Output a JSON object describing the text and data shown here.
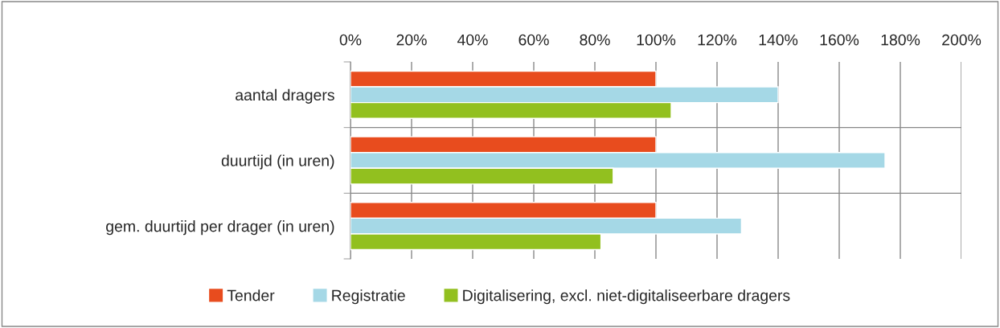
{
  "chart_data": {
    "type": "bar",
    "orientation": "horizontal",
    "categories": [
      "aantal dragers",
      "duurtijd (in uren)",
      "gem. duurtijd per drager (in uren)"
    ],
    "series": [
      {
        "name": "Tender",
        "color": "#e84c1e",
        "values": [
          100,
          100,
          100
        ]
      },
      {
        "name": "Registratie",
        "color": "#a5d8e6",
        "values": [
          140,
          175,
          128
        ]
      },
      {
        "name": "Digitalisering, excl. niet-digitaliseerbare dragers",
        "color": "#92c01f",
        "values": [
          105,
          86,
          82
        ]
      }
    ],
    "xlim": [
      0,
      200
    ],
    "xticks": [
      {
        "value": 0,
        "label": "0%"
      },
      {
        "value": 20,
        "label": "20%"
      },
      {
        "value": 40,
        "label": "40%"
      },
      {
        "value": 60,
        "label": "60%"
      },
      {
        "value": 80,
        "label": "80%"
      },
      {
        "value": 100,
        "label": "100%"
      },
      {
        "value": 120,
        "label": "120%"
      },
      {
        "value": 140,
        "label": "140%"
      },
      {
        "value": 160,
        "label": "160%"
      },
      {
        "value": 180,
        "label": "180%"
      },
      {
        "value": 200,
        "label": "200%"
      }
    ],
    "grid": "x",
    "legend": "bottom"
  }
}
